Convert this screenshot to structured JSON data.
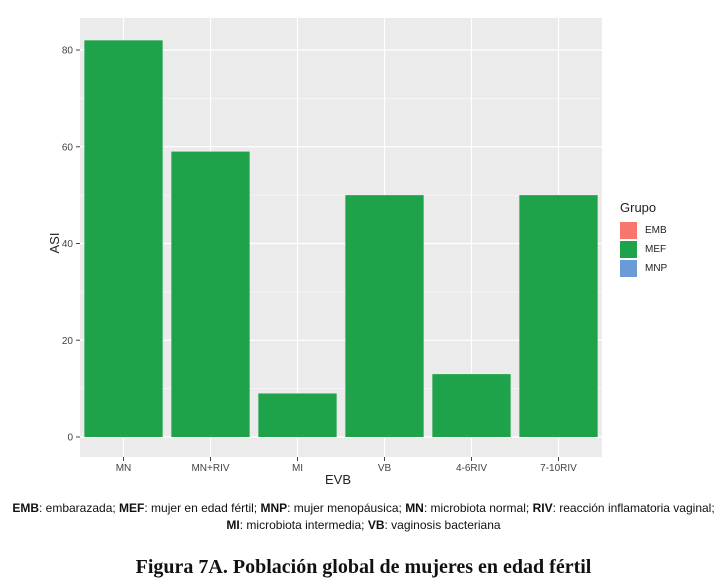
{
  "chart_data": {
    "type": "bar",
    "categories": [
      "MN",
      "MN+RIV",
      "MI",
      "VB",
      "4-6RIV",
      "7-10RIV"
    ],
    "series": [
      {
        "name": "MEF",
        "values": [
          82,
          59,
          9,
          50,
          13,
          50
        ]
      }
    ],
    "xlabel": "EVB",
    "ylabel": "ASI",
    "ylim": [
      0,
      85
    ],
    "yticks": [
      0,
      20,
      40,
      60,
      80
    ],
    "grid": true,
    "legend": {
      "title": "Grupo",
      "placement": "right",
      "entries": [
        {
          "label": "EMB",
          "color": "#F8766D"
        },
        {
          "label": "MEF",
          "color": "#1FA34A"
        },
        {
          "label": "MNP",
          "color": "#6A9BD8"
        }
      ]
    },
    "bar_color": "#1FA34A",
    "panel_color": "#EBEBEB"
  },
  "caption": {
    "line1": [
      {
        "term": "EMB",
        "def": ": embarazada; "
      },
      {
        "term": "MEF",
        "def": ": mujer en edad fértil; "
      },
      {
        "term": "MNP",
        "def": ": mujer menopáusica; "
      },
      {
        "term": "MN",
        "def": ": microbiota normal; "
      },
      {
        "term": "RIV",
        "def": ": reacción inflamatoria vaginal;"
      }
    ],
    "line2": [
      {
        "term": "MI",
        "def": ": microbiota intermedia; "
      },
      {
        "term": "VB",
        "def": ": vaginosis bacteriana"
      }
    ]
  },
  "figure_title": "Figura 7A. Población global de mujeres en edad fértil"
}
